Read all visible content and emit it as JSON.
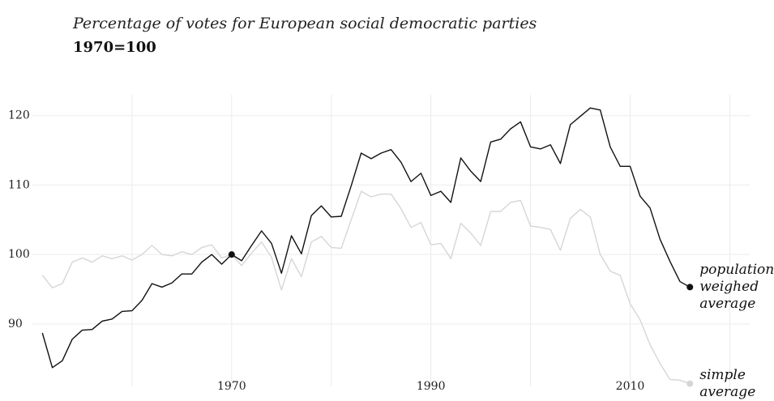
{
  "chart_data": {
    "type": "line",
    "title": "Percentage of votes for European social democratic parties",
    "subtitle": "1970=100",
    "x": [
      1951,
      1952,
      1953,
      1954,
      1955,
      1956,
      1957,
      1958,
      1959,
      1960,
      1961,
      1962,
      1963,
      1964,
      1965,
      1966,
      1967,
      1968,
      1969,
      1970,
      1971,
      1972,
      1973,
      1974,
      1975,
      1976,
      1977,
      1978,
      1979,
      1980,
      1981,
      1982,
      1983,
      1984,
      1985,
      1986,
      1987,
      1988,
      1989,
      1990,
      1991,
      1992,
      1993,
      1994,
      1995,
      1996,
      1997,
      1998,
      1999,
      2000,
      2001,
      2002,
      2003,
      2004,
      2005,
      2006,
      2007,
      2008,
      2009,
      2010,
      2011,
      2012,
      2013,
      2014,
      2015,
      2016
    ],
    "series": [
      {
        "name": "population weighed average",
        "color": "#111111",
        "values": [
          88.7,
          83.7,
          84.7,
          87.8,
          89.1,
          89.2,
          90.4,
          90.7,
          91.8,
          91.9,
          93.4,
          95.8,
          95.3,
          95.9,
          97.2,
          97.2,
          98.9,
          100.0,
          98.6,
          100,
          99.1,
          101.3,
          103.4,
          101.6,
          97.3,
          102.7,
          100.1,
          105.6,
          107.0,
          105.4,
          105.5,
          109.9,
          114.6,
          113.8,
          114.6,
          115.1,
          113.3,
          110.5,
          111.7,
          108.5,
          109.1,
          107.5,
          113.9,
          112.0,
          110.5,
          116.2,
          116.6,
          118.1,
          119.1,
          115.5,
          115.2,
          115.8,
          113.1,
          118.7,
          119.9,
          121.1,
          120.8,
          115.5,
          112.7,
          112.7,
          108.4,
          106.7,
          102.2,
          99.0,
          96.1,
          95.3
        ]
      },
      {
        "name": "simple average",
        "color": "#d6d6d6",
        "values": [
          97.0,
          95.2,
          95.8,
          98.9,
          99.5,
          98.9,
          99.8,
          99.4,
          99.8,
          99.2,
          100.0,
          101.3,
          100.0,
          99.8,
          100.4,
          100.0,
          101.0,
          101.4,
          99.5,
          100,
          98.4,
          100.2,
          101.8,
          99.6,
          94.9,
          99.4,
          96.8,
          101.8,
          102.6,
          101.0,
          100.9,
          105.0,
          109.1,
          108.3,
          108.7,
          108.7,
          106.6,
          103.9,
          104.6,
          101.4,
          101.6,
          99.4,
          104.5,
          103.1,
          101.3,
          106.2,
          106.2,
          107.5,
          107.8,
          104.1,
          103.9,
          103.6,
          100.6,
          105.2,
          106.5,
          105.4,
          100.0,
          97.6,
          97.0,
          92.9,
          90.6,
          87.0,
          84.3,
          82.0,
          81.9,
          81.4
        ]
      }
    ],
    "xlim": [
      1950,
      2022
    ],
    "xticks": [
      {
        "value": 1960,
        "label": null
      },
      1970,
      {
        "value": 1980,
        "label": null
      },
      1990,
      {
        "value": 2000,
        "label": null
      },
      2010,
      {
        "value": 2020,
        "label": null
      }
    ],
    "ylim": [
      81,
      123
    ],
    "yticks": [
      90,
      100,
      110,
      120
    ],
    "grid": true
  }
}
